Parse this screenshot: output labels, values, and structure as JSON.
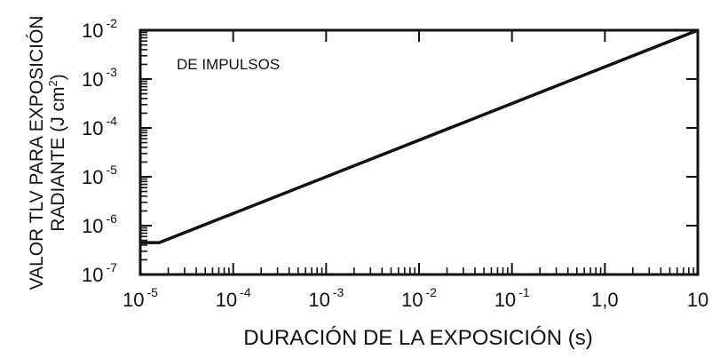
{
  "chart_data": {
    "type": "line",
    "title": "",
    "xlabel": "DURACIÓN DE LA EXPOSICIÓN (s)",
    "ylabel": {
      "line1": "VALOR TLV PARA EXPOSICIÓN",
      "line2_main": "RADIANTE (J cm",
      "line2_sup": "2",
      "line2_end": ")"
    },
    "x_scale": "log",
    "y_scale": "log",
    "xlim": [
      1e-05,
      10
    ],
    "ylim": [
      1e-07,
      0.01
    ],
    "grid": false,
    "annotation": "DE IMPULSOS",
    "x_ticks": [
      {
        "value": 1e-05,
        "base": "10",
        "exp": "-5"
      },
      {
        "value": 0.0001,
        "base": "10",
        "exp": "-4"
      },
      {
        "value": 0.001,
        "base": "10",
        "exp": "-3"
      },
      {
        "value": 0.01,
        "base": "10",
        "exp": "-2"
      },
      {
        "value": 0.1,
        "base": "10",
        "exp": "-1"
      },
      {
        "value": 1,
        "base": "1,0",
        "exp": ""
      },
      {
        "value": 10,
        "base": "10",
        "exp": ""
      }
    ],
    "y_ticks": [
      {
        "value": 1e-07,
        "base": "10",
        "exp": "-7"
      },
      {
        "value": 1e-06,
        "base": "10",
        "exp": "-6"
      },
      {
        "value": 1e-05,
        "base": "10",
        "exp": "-5"
      },
      {
        "value": 0.0001,
        "base": "10",
        "exp": "-4"
      },
      {
        "value": 0.001,
        "base": "10",
        "exp": "-3"
      },
      {
        "value": 0.01,
        "base": "10",
        "exp": "-2"
      }
    ],
    "series": [
      {
        "points": [
          {
            "x": 1e-05,
            "y": 4.5e-07
          },
          {
            "x": 1.6e-05,
            "y": 4.5e-07
          },
          {
            "x": 10,
            "y": 0.01
          }
        ]
      }
    ]
  }
}
